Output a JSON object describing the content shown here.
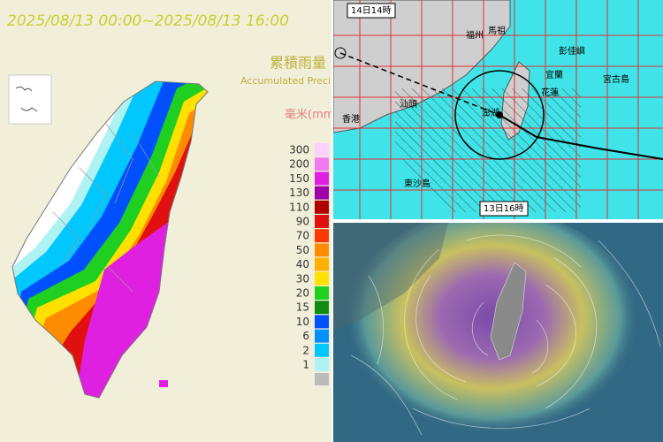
{
  "rainfall_map": {
    "time_range": "2025/08/13 00:00~2025/08/13 16:00",
    "title": "累積雨量",
    "subtitle": "Accumulated Precipitation",
    "unit": "毫米(mm)",
    "legend": [
      {
        "label": 300,
        "color": "#fcd2fc"
      },
      {
        "label": 200,
        "color": "#f07af0"
      },
      {
        "label": 150,
        "color": "#e020e0"
      },
      {
        "label": 130,
        "color": "#a000a8"
      },
      {
        "label": 110,
        "color": "#b00000"
      },
      {
        "label": 90,
        "color": "#e01010"
      },
      {
        "label": 70,
        "color": "#ff3a00"
      },
      {
        "label": 50,
        "color": "#ff8c00"
      },
      {
        "label": 40,
        "color": "#ffb000"
      },
      {
        "label": 30,
        "color": "#ffe000"
      },
      {
        "label": 20,
        "color": "#20d020"
      },
      {
        "label": 15,
        "color": "#108c10"
      },
      {
        "label": 10,
        "color": "#0050ff"
      },
      {
        "label": 6,
        "color": "#0090ff"
      },
      {
        "label": 2,
        "color": "#00c8ff"
      },
      {
        "label": 1,
        "color": "#aef2f4"
      }
    ]
  },
  "track_map": {
    "labels": [
      "14日14時",
      "福州",
      "馬祖",
      "彭佳嶼",
      "宜蘭",
      "花蓮",
      "汕頭",
      "香港",
      "澎湖",
      "東沙島",
      "宮古島",
      "13日16時"
    ]
  }
}
